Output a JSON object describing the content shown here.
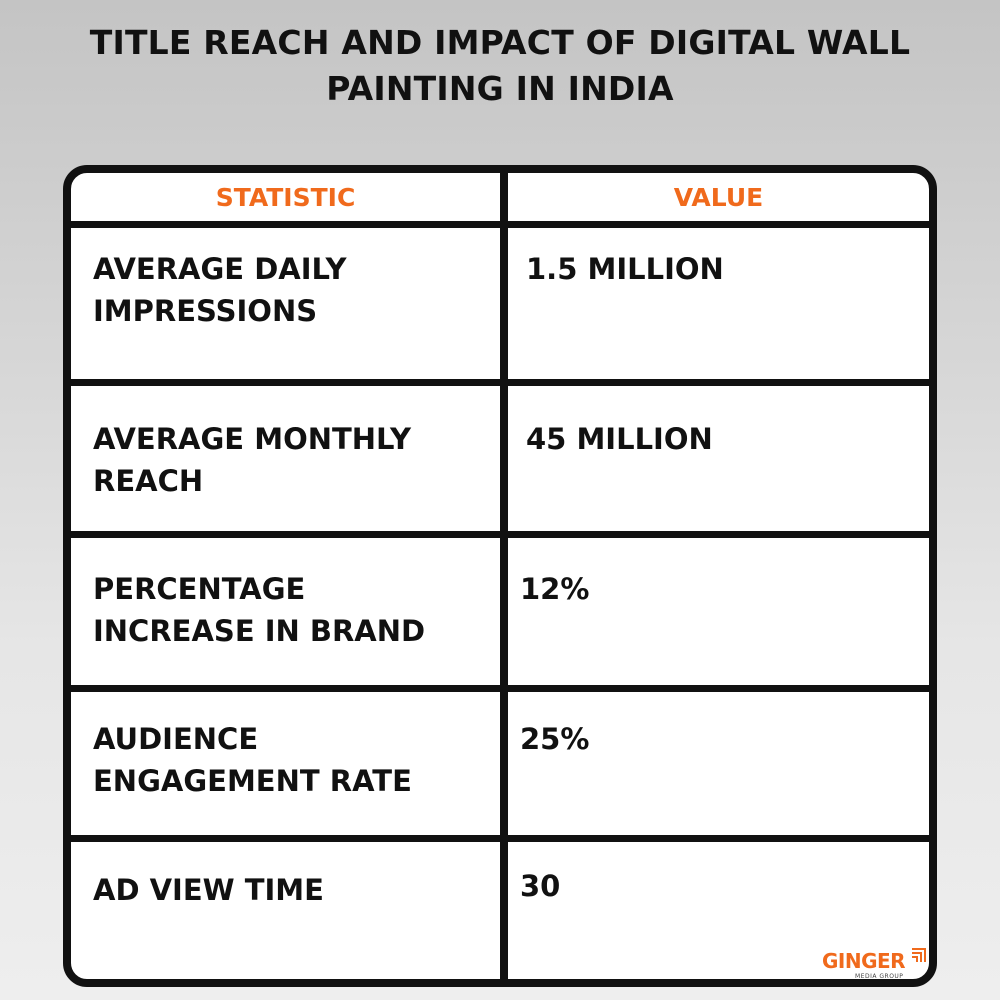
{
  "title": "TITLE REACH AND IMPACT OF DIGITAL WALL PAINTING IN INDIA",
  "colors": {
    "accent": "#f06a1c",
    "border": "#111111",
    "text": "#111111"
  },
  "table": {
    "headers": [
      "STATISTIC",
      "VALUE"
    ],
    "rows": [
      {
        "statistic": [
          "AVERAGE DAILY",
          "IMPRESSIONS"
        ],
        "value": "1.5 MILLION"
      },
      {
        "statistic": [
          "AVERAGE MONTHLY",
          "REACH"
        ],
        "value": "45 MILLION"
      },
      {
        "statistic": [
          "PERCENTAGE",
          "INCREASE IN BRAND"
        ],
        "value": "12%"
      },
      {
        "statistic": [
          "AUDIENCE",
          "ENGAGEMENT RATE"
        ],
        "value": "25%"
      },
      {
        "statistic": [
          "AD VIEW TIME"
        ],
        "value": "30"
      }
    ]
  },
  "logo": {
    "name": "GINGER",
    "subtitle": "MEDIA GROUP",
    "icon": "ginger-logo-icon"
  }
}
